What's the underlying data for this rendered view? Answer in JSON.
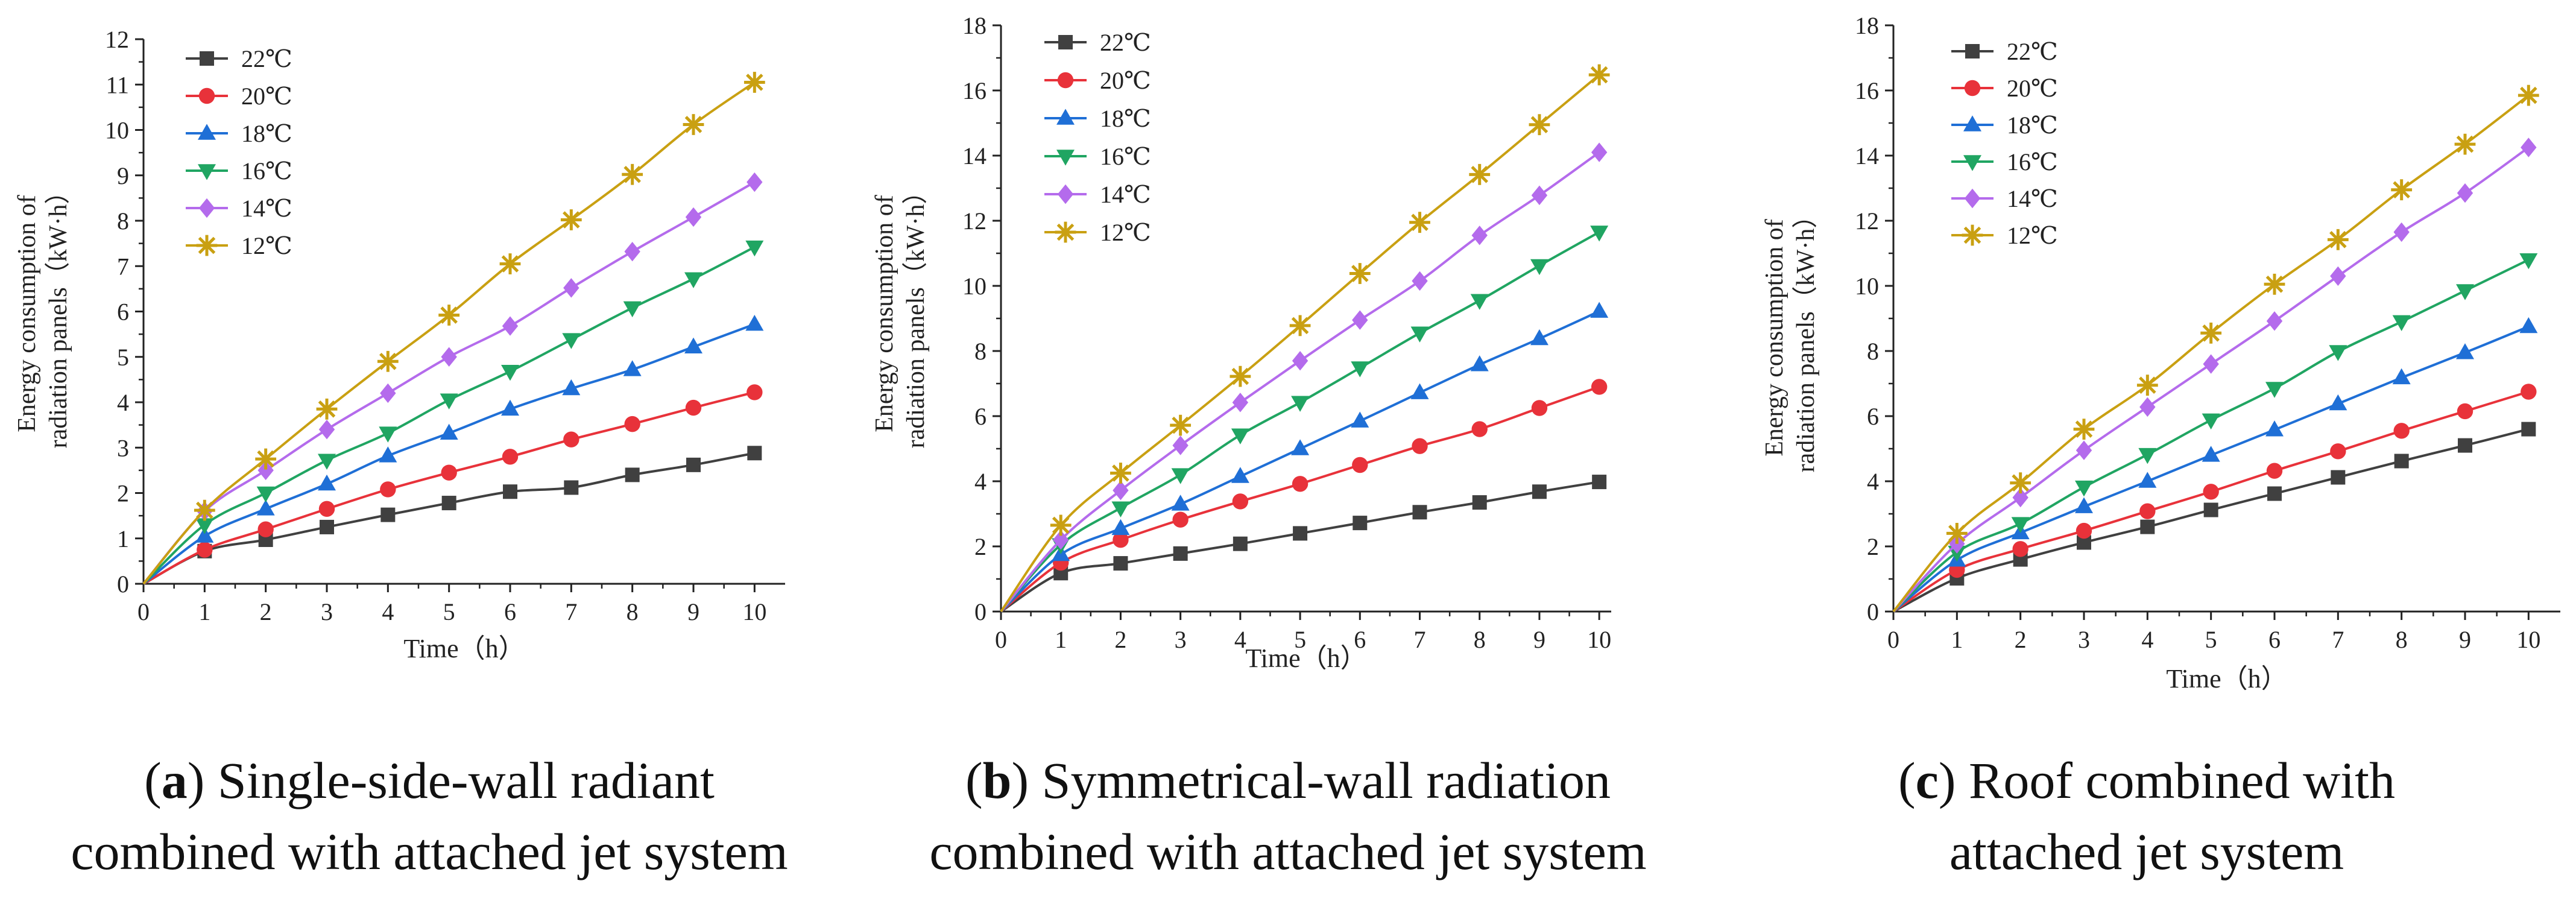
{
  "figure": {
    "captions": [
      {
        "letter": "a",
        "text": ") Single-side-wall radiant",
        "text2": "combined with attached jet system"
      },
      {
        "letter": "b",
        "text": ") Symmetrical-wall radiation",
        "text2": "combined with attached jet system"
      },
      {
        "letter": "c",
        "text": ") Roof combined with",
        "text2": "attached jet system"
      }
    ]
  },
  "chart_data": [
    {
      "type": "line",
      "xlabel": "Time（h）",
      "ylabel_line1": "Energy consumption of",
      "ylabel_line2": "radiation panels（kW·h）",
      "x": [
        0,
        1,
        2,
        3,
        4,
        5,
        6,
        7,
        8,
        9,
        10
      ],
      "xlim": [
        0,
        10.5
      ],
      "ylim": [
        0,
        12
      ],
      "yticks": [
        0,
        1,
        2,
        3,
        4,
        5,
        6,
        7,
        8,
        9,
        10,
        11,
        12
      ],
      "legend_position": "top-left",
      "series": [
        {
          "name": "22℃",
          "color": "#404040",
          "marker": "square",
          "values": [
            0,
            0.72,
            0.97,
            1.25,
            1.52,
            1.78,
            2.03,
            2.12,
            2.4,
            2.62,
            2.88
          ]
        },
        {
          "name": "20℃",
          "color": "#e8323a",
          "marker": "circle",
          "values": [
            0,
            0.75,
            1.2,
            1.65,
            2.08,
            2.45,
            2.8,
            3.18,
            3.52,
            3.88,
            4.22
          ]
        },
        {
          "name": "18℃",
          "color": "#1f6fd6",
          "marker": "triangle-up",
          "values": [
            0,
            1.05,
            1.65,
            2.2,
            2.82,
            3.32,
            3.85,
            4.3,
            4.72,
            5.22,
            5.72
          ]
        },
        {
          "name": "16℃",
          "color": "#20a562",
          "marker": "triangle-down",
          "values": [
            0,
            1.3,
            2.0,
            2.72,
            3.32,
            4.05,
            4.68,
            5.38,
            6.08,
            6.72,
            7.42
          ]
        },
        {
          "name": "14℃",
          "color": "#b46bec",
          "marker": "diamond",
          "values": [
            0,
            1.6,
            2.5,
            3.4,
            4.2,
            5.0,
            5.68,
            6.52,
            7.32,
            8.08,
            8.85
          ]
        },
        {
          "name": "12℃",
          "color": "#c9a012",
          "marker": "asterisk",
          "values": [
            0,
            1.62,
            2.75,
            3.85,
            4.9,
            5.92,
            7.05,
            8.02,
            9.02,
            10.12,
            11.05
          ]
        }
      ]
    },
    {
      "type": "line",
      "xlabel": "Time（h）",
      "ylabel_line1": "Energy consumption of",
      "ylabel_line2": "radiation panels（kW·h）",
      "x": [
        0,
        1,
        2,
        3,
        4,
        5,
        6,
        7,
        8,
        9,
        10
      ],
      "xlim": [
        0,
        10.2
      ],
      "ylim": [
        0,
        18
      ],
      "yticks": [
        0,
        2,
        4,
        6,
        8,
        10,
        12,
        14,
        16,
        18
      ],
      "legend_position": "top-left",
      "series": [
        {
          "name": "22℃",
          "color": "#404040",
          "marker": "square",
          "values": [
            0,
            1.18,
            1.48,
            1.78,
            2.08,
            2.4,
            2.72,
            3.05,
            3.35,
            3.68,
            3.98
          ]
        },
        {
          "name": "20℃",
          "color": "#e8323a",
          "marker": "circle",
          "values": [
            0,
            1.5,
            2.2,
            2.82,
            3.38,
            3.92,
            4.5,
            5.08,
            5.6,
            6.25,
            6.9
          ]
        },
        {
          "name": "18℃",
          "color": "#1f6fd6",
          "marker": "triangle-up",
          "values": [
            0,
            1.75,
            2.55,
            3.3,
            4.15,
            5.0,
            5.85,
            6.72,
            7.58,
            8.38,
            9.22
          ]
        },
        {
          "name": "16℃",
          "color": "#20a562",
          "marker": "triangle-down",
          "values": [
            0,
            2.05,
            3.18,
            4.2,
            5.42,
            6.42,
            7.48,
            8.55,
            9.55,
            10.62,
            11.65
          ]
        },
        {
          "name": "14℃",
          "color": "#b46bec",
          "marker": "diamond",
          "values": [
            0,
            2.2,
            3.72,
            5.1,
            6.42,
            7.7,
            8.95,
            10.15,
            11.55,
            12.78,
            14.1
          ]
        },
        {
          "name": "12℃",
          "color": "#c9a012",
          "marker": "asterisk",
          "values": [
            0,
            2.65,
            4.25,
            5.72,
            7.22,
            8.78,
            10.38,
            11.95,
            13.42,
            14.95,
            16.48
          ]
        }
      ]
    },
    {
      "type": "line",
      "xlabel": "Time（h）",
      "ylabel_line1": "Energy consumption of",
      "ylabel_line2": "radiation panels（kW·h）",
      "x": [
        0,
        1,
        2,
        3,
        4,
        5,
        6,
        7,
        8,
        9,
        10
      ],
      "xlim": [
        0,
        10.5
      ],
      "ylim": [
        0,
        18
      ],
      "yticks": [
        0,
        2,
        4,
        6,
        8,
        10,
        12,
        14,
        16,
        18
      ],
      "legend_position": "top-left",
      "series": [
        {
          "name": "22℃",
          "color": "#404040",
          "marker": "square",
          "values": [
            0,
            1.02,
            1.6,
            2.12,
            2.6,
            3.12,
            3.62,
            4.12,
            4.62,
            5.1,
            5.6
          ]
        },
        {
          "name": "20℃",
          "color": "#e8323a",
          "marker": "circle",
          "values": [
            0,
            1.28,
            1.92,
            2.48,
            3.08,
            3.68,
            4.32,
            4.92,
            5.55,
            6.15,
            6.75
          ]
        },
        {
          "name": "18℃",
          "color": "#1f6fd6",
          "marker": "triangle-up",
          "values": [
            0,
            1.58,
            2.42,
            3.22,
            4.0,
            4.8,
            5.58,
            6.38,
            7.18,
            7.95,
            8.75
          ]
        },
        {
          "name": "16℃",
          "color": "#20a562",
          "marker": "triangle-down",
          "values": [
            0,
            1.82,
            2.7,
            3.82,
            4.82,
            5.88,
            6.85,
            7.98,
            8.9,
            9.85,
            10.8
          ]
        },
        {
          "name": "14℃",
          "color": "#b46bec",
          "marker": "diamond",
          "values": [
            0,
            2.08,
            3.5,
            4.95,
            6.28,
            7.6,
            8.92,
            10.3,
            11.65,
            12.85,
            14.25
          ]
        },
        {
          "name": "12℃",
          "color": "#c9a012",
          "marker": "asterisk",
          "values": [
            0,
            2.4,
            3.95,
            5.6,
            6.95,
            8.55,
            10.05,
            11.42,
            12.95,
            14.35,
            15.85
          ]
        }
      ]
    }
  ]
}
